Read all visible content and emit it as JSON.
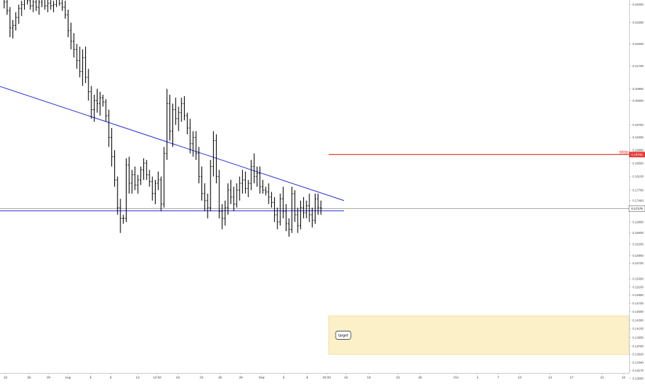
{
  "colors": {
    "background": "#ffffff",
    "bar": "#000000",
    "trendline": "#1c2bd6",
    "crosshair": "#8a8a8a",
    "stop_line": "#e53935",
    "stop_tag": "#e53935",
    "price_tag": "#ffffff",
    "target_zone": "#fcf0c9",
    "target_border": "#f0d88a"
  },
  "chart_data": {
    "type": "ohlc_bar",
    "ylim": [
      0.131,
      0.2418
    ],
    "y_scale": "log",
    "y_ticks": [
      "0.24000",
      "0.23300",
      "0.22500",
      "0.21700",
      "0.20900",
      "0.20500",
      "0.19700",
      "0.19300",
      "0.18900",
      "0.18500",
      "0.18100",
      "0.17700",
      "0.17400",
      "0.16800",
      "0.16500",
      "0.16200",
      "0.15900",
      "0.15700",
      "0.15300",
      "0.15100",
      "0.14900",
      "0.14700",
      "0.14500",
      "0.14300",
      "0.14100",
      "0.13900",
      "0.13700",
      "0.13520",
      "0.13340",
      "0.13170",
      "0.13000"
    ],
    "y_tick_values": [
      0.24,
      0.233,
      0.225,
      0.217,
      0.209,
      0.205,
      0.197,
      0.193,
      0.189,
      0.185,
      0.181,
      0.177,
      0.174,
      0.168,
      0.165,
      0.162,
      0.159,
      0.157,
      0.153,
      0.151,
      0.149,
      0.147,
      0.145,
      0.143,
      0.141,
      0.139,
      0.137,
      0.1352,
      0.1334,
      0.1317,
      0.13
    ],
    "x_labels": [
      "22",
      "26",
      "29",
      "Aug",
      "5",
      "8",
      "12",
      "12:00",
      "19",
      "23",
      "26",
      "29",
      "Sep",
      "5",
      "9",
      "20:00",
      "16",
      "19",
      "23",
      "26",
      "Oct",
      "4",
      "7",
      "10",
      "14",
      "17",
      "21",
      "24"
    ],
    "current_price": {
      "label": "0.17175",
      "value": 0.17175
    },
    "stop": {
      "label": "stop",
      "price_label": "0.18765",
      "value": 0.18765
    },
    "target_zone": {
      "label": "target",
      "y_top": 0.144,
      "y_bottom": 0.1352
    },
    "trendlines": [
      {
        "name": "descending-resistance",
        "start": {
          "x_label": "22",
          "y": 0.21
        },
        "end": {
          "x_label": "16",
          "y": 0.174
        }
      },
      {
        "name": "horizontal-support",
        "start": {
          "x_label": "22",
          "y": 0.1711
        },
        "end": {
          "x_label": "16",
          "y": 0.1711
        }
      }
    ],
    "series": [
      {
        "values": [
          [
            0.242,
            0.2435,
            0.2385,
            0.241
          ],
          [
            0.241,
            0.243,
            0.236,
            0.2375
          ],
          [
            0.2375,
            0.239,
            0.2275,
            0.231
          ],
          [
            0.231,
            0.234,
            0.227,
            0.232
          ],
          [
            0.232,
            0.237,
            0.23,
            0.235
          ],
          [
            0.235,
            0.24,
            0.2325,
            0.2385
          ],
          [
            0.2385,
            0.2415,
            0.2355,
            0.24
          ],
          [
            0.24,
            0.243,
            0.238,
            0.242
          ],
          [
            0.242,
            0.243,
            0.24,
            0.2415
          ],
          [
            0.2415,
            0.243,
            0.238,
            0.2395
          ],
          [
            0.2395,
            0.242,
            0.237,
            0.241
          ],
          [
            0.241,
            0.243,
            0.2375,
            0.239
          ],
          [
            0.239,
            0.242,
            0.236,
            0.241
          ],
          [
            0.241,
            0.243,
            0.239,
            0.242
          ],
          [
            0.242,
            0.243,
            0.238,
            0.2395
          ],
          [
            0.2395,
            0.242,
            0.237,
            0.2405
          ],
          [
            0.2405,
            0.2425,
            0.238,
            0.2395
          ],
          [
            0.2395,
            0.2415,
            0.237,
            0.24
          ],
          [
            0.24,
            0.243,
            0.239,
            0.242
          ],
          [
            0.242,
            0.243,
            0.2395,
            0.2405
          ],
          [
            0.2405,
            0.242,
            0.2375,
            0.239
          ],
          [
            0.239,
            0.2415,
            0.2345,
            0.236
          ],
          [
            0.236,
            0.238,
            0.2275,
            0.23
          ],
          [
            0.23,
            0.233,
            0.223,
            0.226
          ],
          [
            0.226,
            0.229,
            0.22,
            0.223
          ],
          [
            0.223,
            0.225,
            0.216,
            0.219
          ],
          [
            0.219,
            0.224,
            0.213,
            0.215
          ],
          [
            0.215,
            0.223,
            0.21,
            0.22
          ],
          [
            0.22,
            0.224,
            0.211,
            0.213
          ],
          [
            0.213,
            0.216,
            0.205,
            0.208
          ],
          [
            0.208,
            0.21,
            0.199,
            0.202
          ],
          [
            0.202,
            0.207,
            0.198,
            0.205
          ],
          [
            0.205,
            0.209,
            0.201,
            0.204
          ],
          [
            0.204,
            0.208,
            0.2,
            0.206
          ],
          [
            0.206,
            0.207,
            0.203,
            0.2045
          ],
          [
            0.2045,
            0.2055,
            0.198,
            0.2
          ],
          [
            0.2,
            0.202,
            0.19,
            0.193
          ],
          [
            0.193,
            0.196,
            0.184,
            0.187
          ],
          [
            0.187,
            0.189,
            0.178,
            0.18
          ],
          [
            0.18,
            0.181,
            0.17,
            0.172
          ],
          [
            0.172,
            0.1745,
            0.165,
            0.169
          ],
          [
            0.169,
            0.17,
            0.1675,
            0.169
          ],
          [
            0.169,
            0.1865,
            0.168,
            0.1845
          ],
          [
            0.1845,
            0.187,
            0.176,
            0.179
          ],
          [
            0.179,
            0.183,
            0.176,
            0.1815
          ],
          [
            0.1815,
            0.184,
            0.177,
            0.1785
          ],
          [
            0.1785,
            0.1815,
            0.176,
            0.18
          ],
          [
            0.18,
            0.184,
            0.1785,
            0.183
          ],
          [
            0.183,
            0.1865,
            0.18,
            0.185
          ],
          [
            0.185,
            0.186,
            0.18,
            0.1815
          ],
          [
            0.1815,
            0.183,
            0.178,
            0.1795
          ],
          [
            0.1795,
            0.181,
            0.174,
            0.176
          ],
          [
            0.176,
            0.18,
            0.173,
            0.179
          ],
          [
            0.179,
            0.1825,
            0.177,
            0.18
          ],
          [
            0.18,
            0.181,
            0.171,
            0.173
          ],
          [
            0.173,
            0.19,
            0.172,
            0.188
          ],
          [
            0.188,
            0.209,
            0.186,
            0.204
          ],
          [
            0.204,
            0.207,
            0.192,
            0.195
          ],
          [
            0.195,
            0.204,
            0.19,
            0.202
          ],
          [
            0.202,
            0.206,
            0.197,
            0.199
          ],
          [
            0.199,
            0.203,
            0.195,
            0.201
          ],
          [
            0.201,
            0.206,
            0.198,
            0.204
          ],
          [
            0.204,
            0.2065,
            0.1985,
            0.2
          ],
          [
            0.2,
            0.201,
            0.194,
            0.196
          ],
          [
            0.196,
            0.199,
            0.188,
            0.191
          ],
          [
            0.191,
            0.195,
            0.187,
            0.193
          ],
          [
            0.193,
            0.195,
            0.186,
            0.188
          ],
          [
            0.188,
            0.19,
            0.179,
            0.181
          ],
          [
            0.181,
            0.184,
            0.174,
            0.176
          ],
          [
            0.176,
            0.179,
            0.171,
            0.174
          ],
          [
            0.174,
            0.176,
            0.169,
            0.172
          ],
          [
            0.172,
            0.186,
            0.171,
            0.184
          ],
          [
            0.184,
            0.195,
            0.181,
            0.192
          ],
          [
            0.192,
            0.194,
            0.179,
            0.181
          ],
          [
            0.181,
            0.183,
            0.169,
            0.171
          ],
          [
            0.171,
            0.173,
            0.166,
            0.169
          ],
          [
            0.169,
            0.174,
            0.167,
            0.172
          ],
          [
            0.172,
            0.179,
            0.17,
            0.177
          ],
          [
            0.177,
            0.18,
            0.173,
            0.175
          ],
          [
            0.175,
            0.178,
            0.171,
            0.173
          ],
          [
            0.173,
            0.179,
            0.172,
            0.177
          ],
          [
            0.177,
            0.181,
            0.174,
            0.179
          ],
          [
            0.179,
            0.183,
            0.176,
            0.18
          ],
          [
            0.18,
            0.1825,
            0.176,
            0.1775
          ],
          [
            0.1775,
            0.18,
            0.175,
            0.179
          ],
          [
            0.179,
            0.186,
            0.177,
            0.184
          ],
          [
            0.184,
            0.188,
            0.179,
            0.181
          ],
          [
            0.181,
            0.184,
            0.178,
            0.182
          ],
          [
            0.182,
            0.184,
            0.176,
            0.178
          ],
          [
            0.178,
            0.18,
            0.176,
            0.177
          ],
          [
            0.177,
            0.178,
            0.1755,
            0.1765
          ],
          [
            0.1765,
            0.179,
            0.173,
            0.175
          ],
          [
            0.175,
            0.1765,
            0.172,
            0.1735
          ],
          [
            0.1735,
            0.175,
            0.168,
            0.17
          ],
          [
            0.17,
            0.172,
            0.166,
            0.168
          ],
          [
            0.168,
            0.176,
            0.167,
            0.1745
          ],
          [
            0.1745,
            0.178,
            0.169,
            0.171
          ],
          [
            0.171,
            0.173,
            0.1655,
            0.1675
          ],
          [
            0.1675,
            0.169,
            0.164,
            0.166
          ],
          [
            0.166,
            0.178,
            0.165,
            0.176
          ],
          [
            0.176,
            0.177,
            0.168,
            0.17
          ],
          [
            0.17,
            0.172,
            0.165,
            0.167
          ],
          [
            0.167,
            0.174,
            0.166,
            0.172
          ],
          [
            0.172,
            0.175,
            0.169,
            0.1705
          ],
          [
            0.1705,
            0.174,
            0.169,
            0.1725
          ],
          [
            0.1725,
            0.176,
            0.168,
            0.17
          ],
          [
            0.17,
            0.172,
            0.1665,
            0.1685
          ],
          [
            0.1685,
            0.176,
            0.1675,
            0.1745
          ],
          [
            0.1745,
            0.176,
            0.17,
            0.172
          ],
          [
            0.172,
            0.174,
            0.17,
            0.1718
          ]
        ]
      }
    ]
  }
}
